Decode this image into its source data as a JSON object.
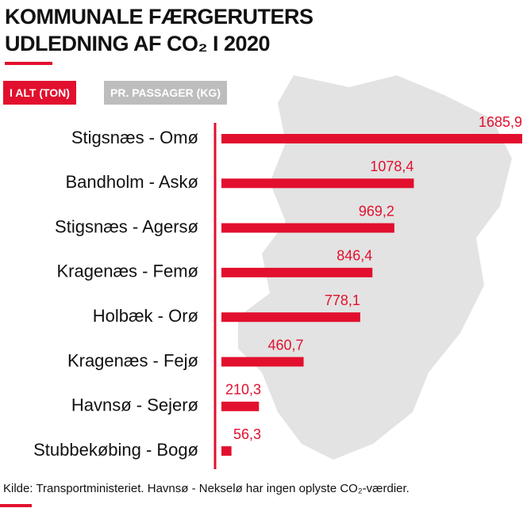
{
  "title": "KOMMUNALE FÆRGERUTERS UDLEDNING AF CO₂ I 2020",
  "buttons": [
    "I ALT (TON)",
    "PR. PASSAGER (KG)"
  ],
  "source": "Kilde: Transportministeriet. Havnsø - Nekselø har ingen oplyste CO₂-værdier.",
  "chart_data": {
    "type": "bar",
    "orientation": "horizontal",
    "color": "#e2102e",
    "categories": [
      "Stigsnæs - Omø",
      "Bandholm - Askø",
      "Stigsnæs - Agersø",
      "Kragenæs - Femø",
      "Holbæk - Orø",
      "Kragenæs - Fejø",
      "Havnsø - Sejerø",
      "Stubbekøbing - Bogø"
    ],
    "values": [
      1685.9,
      1078.4,
      969.2,
      846.4,
      778.1,
      460.7,
      210.3,
      56.3
    ],
    "value_labels": [
      "1685,9",
      "1078,4",
      "969,2",
      "846,4",
      "778,1",
      "460,7",
      "210,3",
      "56,3"
    ]
  }
}
